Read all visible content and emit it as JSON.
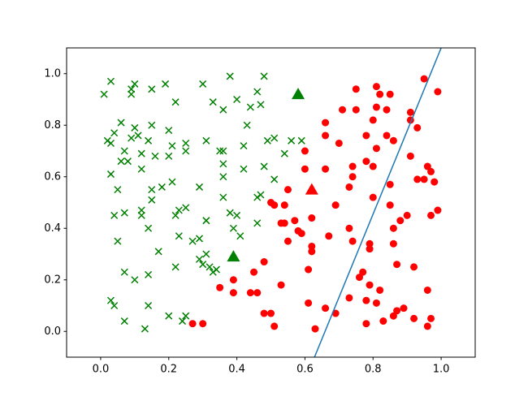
{
  "chart_data": {
    "type": "scatter",
    "xlim": [
      -0.1,
      1.1
    ],
    "ylim": [
      -0.1,
      1.1
    ],
    "xticks": [
      {
        "value": 0,
        "label": "0.0"
      },
      {
        "value": 0.2,
        "label": "0.2"
      },
      {
        "value": 0.4,
        "label": "0.4"
      },
      {
        "value": 0.6,
        "label": "0.6"
      },
      {
        "value": 0.8,
        "label": "0.8"
      },
      {
        "value": 1,
        "label": "1.0"
      }
    ],
    "yticks": [
      {
        "value": 0,
        "label": "0.0"
      },
      {
        "value": 0.2,
        "label": "0.2"
      },
      {
        "value": 0.4,
        "label": "0.4"
      },
      {
        "value": 0.6,
        "label": "0.6"
      },
      {
        "value": 0.8,
        "label": "0.8"
      },
      {
        "value": 1,
        "label": "1.0"
      }
    ],
    "grid": false,
    "series": [
      {
        "type": "scatter",
        "marker": "x",
        "color": "#008000",
        "x": [
          0.01,
          0.03,
          0.09,
          0.1,
          0.09,
          0.19,
          0.15,
          0.22,
          0.3,
          0.38,
          0.33,
          0.4,
          0.44,
          0.46,
          0.48,
          0.47,
          0.43,
          0.36,
          0.03,
          0.02,
          0.04,
          0.06,
          0.1,
          0.11,
          0.15,
          0.2,
          0.03,
          0.06,
          0.07,
          0.08,
          0.09,
          0.12,
          0.14,
          0.12,
          0.16,
          0.2,
          0.21,
          0.25,
          0.25,
          0.31,
          0.35,
          0.36,
          0.36,
          0.36,
          0.42,
          0.42,
          0.49,
          0.51,
          0.48,
          0.51,
          0.54,
          0.56,
          0.59,
          0.05,
          0.15,
          0.15,
          0.18,
          0.21,
          0.04,
          0.07,
          0.12,
          0.12,
          0.14,
          0.22,
          0.23,
          0.25,
          0.29,
          0.36,
          0.38,
          0.4,
          0.46,
          0.47,
          0.46,
          0.39,
          0.41,
          0.05,
          0.17,
          0.23,
          0.27,
          0.29,
          0.31,
          0.31,
          0.31,
          0.29,
          0.3,
          0.32,
          0.33,
          0.34,
          0.07,
          0.1,
          0.14,
          0.22,
          0.03,
          0.04,
          0.07,
          0.14,
          0.13,
          0.2,
          0.24,
          0.25
        ],
        "y": [
          0.92,
          0.97,
          0.94,
          0.96,
          0.92,
          0.96,
          0.94,
          0.89,
          0.96,
          0.99,
          0.89,
          0.9,
          0.87,
          0.93,
          0.99,
          0.88,
          0.8,
          0.86,
          0.73,
          0.74,
          0.77,
          0.81,
          0.79,
          0.76,
          0.8,
          0.78,
          0.61,
          0.66,
          0.7,
          0.66,
          0.75,
          0.69,
          0.74,
          0.63,
          0.68,
          0.68,
          0.72,
          0.73,
          0.7,
          0.74,
          0.7,
          0.7,
          0.65,
          0.6,
          0.72,
          0.63,
          0.74,
          0.75,
          0.64,
          0.59,
          0.69,
          0.74,
          0.74,
          0.55,
          0.55,
          0.51,
          0.56,
          0.58,
          0.45,
          0.46,
          0.45,
          0.47,
          0.4,
          0.45,
          0.47,
          0.48,
          0.56,
          0.52,
          0.46,
          0.45,
          0.52,
          0.53,
          0.42,
          0.4,
          0.37,
          0.35,
          0.31,
          0.37,
          0.35,
          0.36,
          0.43,
          0.43,
          0.3,
          0.28,
          0.26,
          0.25,
          0.23,
          0.24,
          0.23,
          0.2,
          0.22,
          0.25,
          0.12,
          0.1,
          0.04,
          0.1,
          0.01,
          0.06,
          0.04,
          0.06
        ]
      },
      {
        "type": "scatter",
        "marker": "o",
        "color": "#ff0000",
        "x": [
          0.27,
          0.3,
          0.35,
          0.39,
          0.39,
          0.44,
          0.45,
          0.46,
          0.48,
          0.48,
          0.5,
          0.51,
          0.53,
          0.5,
          0.51,
          0.53,
          0.54,
          0.54,
          0.55,
          0.55,
          0.57,
          0.58,
          0.59,
          0.6,
          0.6,
          0.61,
          0.61,
          0.62,
          0.62,
          0.62,
          0.63,
          0.66,
          0.66,
          0.66,
          0.66,
          0.67,
          0.69,
          0.69,
          0.7,
          0.71,
          0.73,
          0.73,
          0.73,
          0.74,
          0.74,
          0.75,
          0.75,
          0.74,
          0.76,
          0.77,
          0.78,
          0.78,
          0.78,
          0.78,
          0.79,
          0.79,
          0.79,
          0.8,
          0.8,
          0.8,
          0.81,
          0.81,
          0.81,
          0.81,
          0.82,
          0.82,
          0.83,
          0.84,
          0.84,
          0.85,
          0.85,
          0.85,
          0.86,
          0.86,
          0.86,
          0.86,
          0.87,
          0.87,
          0.88,
          0.89,
          0.9,
          0.91,
          0.91,
          0.91,
          0.92,
          0.92,
          0.93,
          0.93,
          0.95,
          0.95,
          0.96,
          0.96,
          0.96,
          0.97,
          0.97,
          0.97,
          0.98,
          0.99,
          0.99
        ],
        "y": [
          0.03,
          0.03,
          0.17,
          0.2,
          0.15,
          0.15,
          0.23,
          0.15,
          0.07,
          0.27,
          0.07,
          0.02,
          0.18,
          0.5,
          0.49,
          0.42,
          0.42,
          0.49,
          0.35,
          0.55,
          0.43,
          0.39,
          0.38,
          0.7,
          0.63,
          0.24,
          0.11,
          0.33,
          0.31,
          0.44,
          0.01,
          0.09,
          0.81,
          0.76,
          0.63,
          0.37,
          0.07,
          0.49,
          0.73,
          0.86,
          0.4,
          0.13,
          0.56,
          0.6,
          0.64,
          0.94,
          0.86,
          0.35,
          0.21,
          0.23,
          0.12,
          0.03,
          0.76,
          0.66,
          0.34,
          0.32,
          0.18,
          0.64,
          0.52,
          0.82,
          0.95,
          0.87,
          0.71,
          0.11,
          0.92,
          0.16,
          0.04,
          0.76,
          0.86,
          0.92,
          0.57,
          0.49,
          0.74,
          0.06,
          0.4,
          0.34,
          0.08,
          0.26,
          0.43,
          0.09,
          0.45,
          0.85,
          0.82,
          0.68,
          0.25,
          0.05,
          0.79,
          0.59,
          0.59,
          0.98,
          0.16,
          0.64,
          0.02,
          0.62,
          0.45,
          0.05,
          0.58,
          0.47,
          0.93
        ]
      },
      {
        "type": "scatter",
        "marker": "^",
        "color": "#008000",
        "x": [
          0.58,
          0.39
        ],
        "y": [
          0.92,
          0.29
        ]
      },
      {
        "type": "scatter",
        "marker": "^",
        "color": "#ff0000",
        "x": [
          0.62
        ],
        "y": [
          0.55
        ]
      },
      {
        "type": "line",
        "color": "#1f77b4",
        "x": [
          0.628,
          1.0
        ],
        "y": [
          -0.1,
          1.1
        ]
      }
    ]
  }
}
